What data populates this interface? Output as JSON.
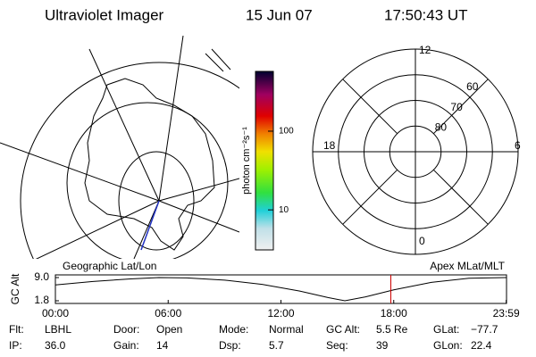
{
  "header": {
    "title": "Ultraviolet Imager",
    "date": "15 Jun 07",
    "time": "17:50:43 UT"
  },
  "colorbar": {
    "label": "photon cm⁻²s⁻¹",
    "log": true,
    "clim": [
      3.1,
      575
    ],
    "ticks": [
      10,
      100
    ]
  },
  "polar": {
    "lat_range": [
      50,
      90
    ],
    "lat_circles": [
      50,
      60,
      70,
      80
    ],
    "lat_labels": [
      60,
      70,
      80
    ],
    "mlt_labels": [
      12,
      6,
      0,
      18
    ]
  },
  "altitude_plot": {
    "left_label": "Geographic Lat/Lon",
    "right_label": "Apex MLat/MLT",
    "ylabel": "GC Alt",
    "ylim": [
      1.8,
      9.0
    ],
    "yticks": [
      {
        "value": 9.0,
        "label": "9.0"
      },
      {
        "value": 1.8,
        "label": "1.8"
      }
    ],
    "xlim": [
      0,
      24
    ],
    "xticks": [
      {
        "value": 0,
        "label": "00:00"
      },
      {
        "value": 6,
        "label": "06:00"
      },
      {
        "value": 12,
        "label": "12:00"
      },
      {
        "value": 18,
        "label": "18:00"
      },
      {
        "value": 23.983,
        "label": "23:59"
      }
    ],
    "x": [
      0,
      2,
      4,
      5.5,
      7,
      9,
      11,
      13,
      14.5,
      15.4,
      16.5,
      18,
      20,
      22,
      23.983
    ],
    "values": [
      6.7,
      7.8,
      8.6,
      9.0,
      8.9,
      8.2,
      6.9,
      4.8,
      2.8,
      1.8,
      3.0,
      5.2,
      7.5,
      8.8,
      9.0
    ],
    "marker": 17.845,
    "marker_color": "#cc0000"
  },
  "footer": [
    [
      {
        "label": "Flt:",
        "value": "LBHL"
      },
      {
        "label": "IP:",
        "value": "36.0"
      }
    ],
    [
      {
        "label": "Door:",
        "value": "Open"
      },
      {
        "label": "Gain:",
        "value": "14"
      }
    ],
    [
      {
        "label": "Mode:",
        "value": "Normal"
      },
      {
        "label": "Dsp:",
        "value": "5.7"
      }
    ],
    [
      {
        "label": "GC Alt:",
        "value": "5.5 Re"
      },
      {
        "label": "Seq:",
        "value": "39"
      }
    ],
    [
      {
        "label": "GLat:",
        "value": "−77.7"
      },
      {
        "label": "GLon:",
        "value": "22.4"
      }
    ]
  ]
}
